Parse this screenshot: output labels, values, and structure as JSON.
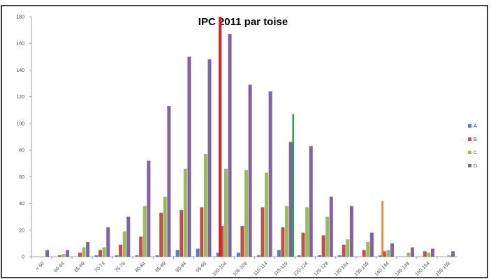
{
  "chart_data": {
    "type": "bar",
    "title": "IPC 2011 par toise",
    "xlabel": "",
    "ylabel": "",
    "ylim": [
      0,
      180
    ],
    "yticks": [
      0,
      20,
      40,
      60,
      80,
      100,
      120,
      140,
      160,
      180
    ],
    "ytick_labels": [
      "0",
      "20",
      "40",
      "60",
      "80",
      "100",
      "120",
      "140",
      "160",
      "180"
    ],
    "grid": false,
    "legend_position": "right",
    "categories": [
      "< 60",
      "60-64",
      "65-69",
      "70-74",
      "75-79",
      "80-84",
      "85-89",
      "90-94",
      "95-99",
      "100-104",
      "105-109",
      "110-114",
      "115-119",
      "120-124",
      "125-129",
      "130-134",
      "135-139",
      "140-144",
      "145-149",
      "150-154",
      "155-159"
    ],
    "series": [
      {
        "name": "A",
        "color": "#4f81bd",
        "values": [
          0,
          0,
          0,
          1,
          1,
          1,
          1,
          5,
          6,
          3,
          3,
          1,
          5,
          1,
          1,
          1,
          0,
          1,
          0,
          0,
          0
        ]
      },
      {
        "name": "B",
        "color": "#c0504d",
        "values": [
          0,
          1,
          3,
          5,
          9,
          15,
          33,
          35,
          37,
          23,
          23,
          37,
          22,
          18,
          16,
          9,
          5,
          4,
          0,
          4,
          0
        ]
      },
      {
        "name": "C",
        "color": "#9bbb59",
        "values": [
          0,
          2,
          7,
          7,
          19,
          38,
          45,
          66,
          77,
          66,
          65,
          63,
          38,
          37,
          30,
          13,
          11,
          5,
          3,
          3,
          1
        ]
      },
      {
        "name": "D",
        "color": "#8064a2",
        "values": [
          5,
          5,
          11,
          22,
          30,
          72,
          113,
          150,
          148,
          167,
          129,
          124,
          86,
          83,
          45,
          38,
          18,
          10,
          7,
          6,
          4
        ]
      }
    ],
    "reference_lines": [
      {
        "color": "#e41a1c",
        "position": 101.5,
        "ymax": 180
      },
      {
        "color": "#1fa34a",
        "position": 119.5,
        "ymax": 107
      },
      {
        "color": "#f57f20",
        "position": 141.5,
        "ymax": 42
      }
    ]
  }
}
